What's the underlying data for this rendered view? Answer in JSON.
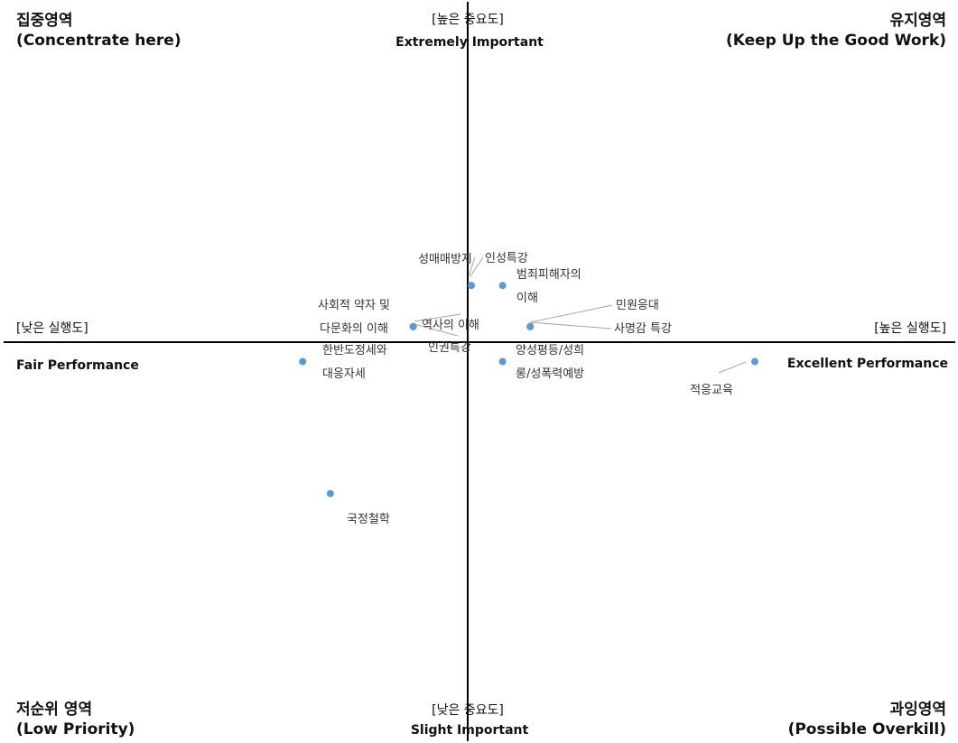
{
  "colors": {
    "point": "#5b9bd5",
    "axis": "#000000",
    "leader": "#a6a6a6"
  },
  "quadrants": {
    "top_left": {
      "line1": "집중영역",
      "line2": "(Concentrate here)"
    },
    "top_right": {
      "line1": "유지영역",
      "line2": "(Keep Up the Good Work)"
    },
    "bottom_left": {
      "line1": "저순위 영역",
      "line2": "(Low Priority)"
    },
    "bottom_right": {
      "line1": "과잉영역",
      "line2": "(Possible Overkill)"
    }
  },
  "axes": {
    "y_top": {
      "line1": "[높은 중요도]",
      "line2": "Extremely Important"
    },
    "y_bottom": {
      "line1": "[낮은 중요도]",
      "line2": "Slight Important"
    },
    "x_left": {
      "line1": "[낮은 실행도]",
      "line2": "Fair Performance"
    },
    "x_right": {
      "line1": "[높은 실행도]",
      "line2": "Excellent Performance"
    }
  },
  "chart_data": {
    "type": "scatter",
    "title": "",
    "xlabel": "",
    "ylabel": "",
    "grid": false,
    "points": [
      {
        "label_lines": [
          "성매매방지"
        ],
        "x": 0.05,
        "y": 0.73
      },
      {
        "label_lines": [
          "인성특강"
        ],
        "x": 0.05,
        "y": 0.73
      },
      {
        "label_lines": [
          "범죄피해자의",
          "이해"
        ],
        "x": 0.48,
        "y": 0.73
      },
      {
        "label_lines": [
          "사회적 약자 및",
          "다문화의 이해"
        ],
        "x": -0.75,
        "y": 0.2
      },
      {
        "label_lines": [
          "역사의 이해"
        ],
        "x": -0.75,
        "y": 0.2
      },
      {
        "label_lines": [
          "인권특강"
        ],
        "x": -0.75,
        "y": 0.2
      },
      {
        "label_lines": [
          "민원응대"
        ],
        "x": 0.86,
        "y": 0.2
      },
      {
        "label_lines": [
          "사명감 특강"
        ],
        "x": 0.86,
        "y": 0.2
      },
      {
        "label_lines": [
          "한반도정세와",
          "대응자세"
        ],
        "x": -2.27,
        "y": -0.25
      },
      {
        "label_lines": [
          "양성평등/성희",
          "롱/성폭력예방"
        ],
        "x": 0.48,
        "y": -0.25
      },
      {
        "label_lines": [
          "적응교육"
        ],
        "x": 3.95,
        "y": -0.25
      },
      {
        "label_lines": [
          "국정철학"
        ],
        "x": -1.89,
        "y": -1.95
      }
    ]
  }
}
